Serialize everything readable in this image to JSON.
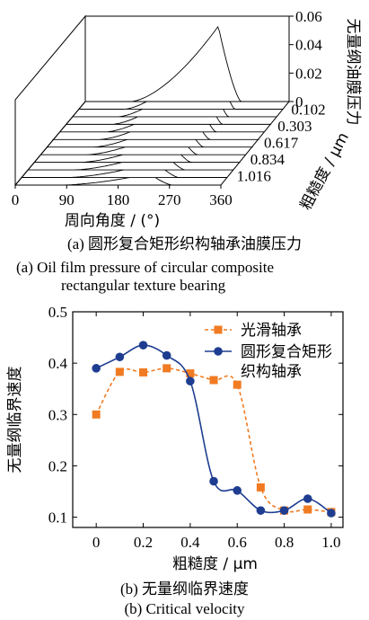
{
  "chart_data": [
    {
      "type": "area",
      "title": "",
      "xlabel": "周向角度 / (°)",
      "ylabel": "粗糙度 / μm",
      "zlabel": "无量纲油膜压力",
      "xticks": [
        "0",
        "90",
        "180",
        "270",
        "360"
      ],
      "yticks": [
        "0.102",
        "0.303",
        "0.617",
        "0.834",
        "1.016"
      ],
      "zticks": [
        "0",
        "0.02",
        "0.04",
        "0.06"
      ],
      "xlim": [
        0,
        360
      ],
      "zlim": [
        0,
        0.06
      ],
      "peak_angle": 235,
      "n_curves": 12,
      "peak_values": [
        0.008,
        0.011,
        0.014,
        0.017,
        0.02,
        0.024,
        0.028,
        0.032,
        0.037,
        0.042,
        0.048,
        0.053
      ],
      "caption_cn": "(a)  圆形复合矩形织构轴承油膜压力",
      "caption_en_1": "(a)  Oil film pressure of circular composite",
      "caption_en_2": "rectangular texture bearing"
    },
    {
      "type": "line",
      "title": "",
      "xlabel": "粗糙度 / μm",
      "ylabel": "无量纲临界速度",
      "xticks": [
        "0",
        "0.2",
        "0.4",
        "0.6",
        "0.8",
        "1.0"
      ],
      "yticks": [
        "0.1",
        "0.2",
        "0.3",
        "0.4",
        "0.5"
      ],
      "xlim": [
        -0.1,
        1.05
      ],
      "ylim": [
        0.08,
        0.5
      ],
      "x": [
        0,
        0.1,
        0.2,
        0.3,
        0.4,
        0.5,
        0.6,
        0.7,
        0.8,
        0.9,
        1.0
      ],
      "series": [
        {
          "name": "光滑轴承",
          "color": "#f07b22",
          "marker": "square",
          "dashed": true,
          "values": [
            0.3,
            0.383,
            0.382,
            0.39,
            0.38,
            0.367,
            0.358,
            0.158,
            0.113,
            0.115,
            0.11
          ]
        },
        {
          "name": "圆形复合矩形织构轴承",
          "legend_lines": [
            "圆形复合矩形",
            "织构轴承"
          ],
          "color": "#1e3d91",
          "marker": "circle",
          "dashed": false,
          "values": [
            0.39,
            0.412,
            0.435,
            0.415,
            0.365,
            0.17,
            0.152,
            0.113,
            0.113,
            0.136,
            0.108
          ]
        }
      ],
      "caption_cn": "(b)  无量纲临界速度",
      "caption_en": "(b)  Critical velocity"
    }
  ]
}
